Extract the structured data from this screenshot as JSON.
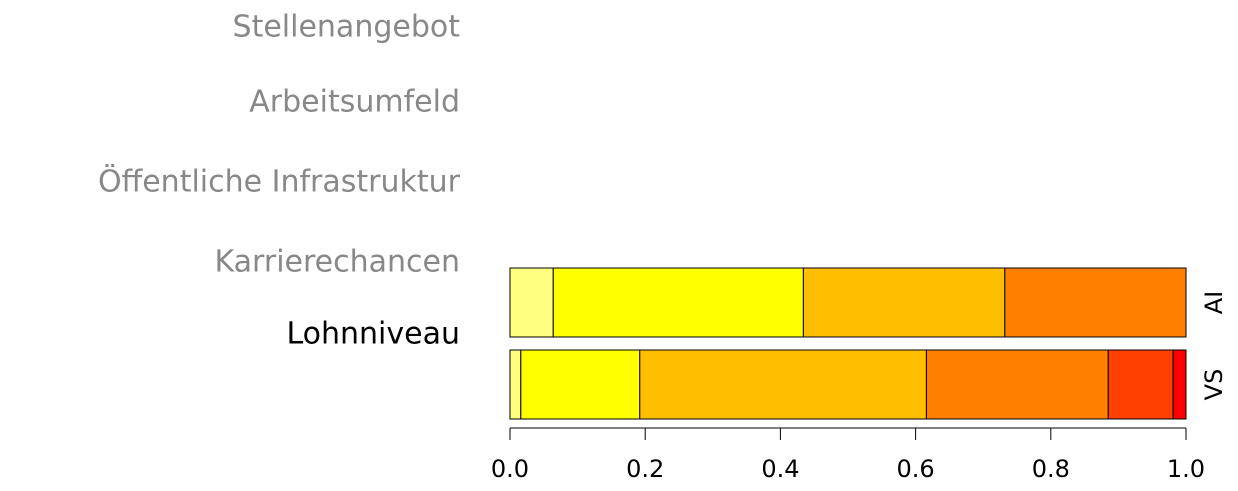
{
  "chart_data": {
    "type": "stacked_bar_horizontal",
    "side_labels": [
      "Stellenangebot",
      "Arbeitsumfeld",
      "Öffentliche Infrastruktur",
      "Karrierechancen",
      "Lohnniveau"
    ],
    "selected_index": 4,
    "categories": [
      "AI",
      "VS"
    ],
    "series": [
      {
        "color": "#ffff80",
        "values": [
          0.064,
          0.016
        ]
      },
      {
        "color": "#ffff00",
        "values": [
          0.37,
          0.176
        ]
      },
      {
        "color": "#ffbf00",
        "values": [
          0.298,
          0.424
        ]
      },
      {
        "color": "#ff8000",
        "values": [
          0.268,
          0.269
        ]
      },
      {
        "color": "#ff4000",
        "values": [
          0,
          0.096
        ]
      },
      {
        "color": "#ff0000",
        "values": [
          0,
          0.019
        ]
      }
    ],
    "xlim": [
      0,
      1
    ],
    "xticks": [
      {
        "value": 0,
        "label": "0.0"
      },
      0.2,
      0.4,
      0.6,
      0.8,
      {
        "value": 1,
        "label": "1.0"
      }
    ]
  }
}
